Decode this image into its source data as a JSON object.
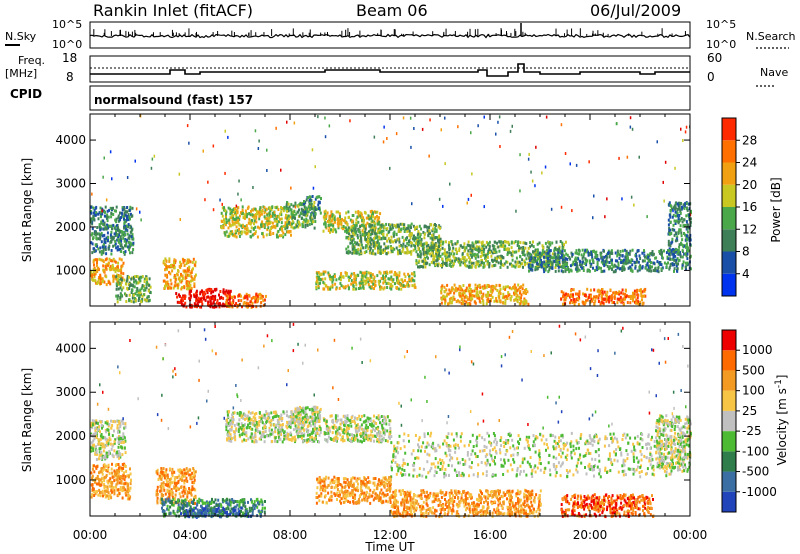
{
  "header": {
    "station": "Rankin Inlet (fitACF)",
    "beam": "Beam 06",
    "date": "06/Jul/2009"
  },
  "noise_panel": {
    "left_label": "N.Sky",
    "right_label": "N.Search",
    "left_ticks": [
      "10^5",
      "10^0"
    ],
    "right_ticks": [
      "10^5",
      "10^0"
    ]
  },
  "freq_panel": {
    "left_label_1": "Freq.",
    "left_label_2": "[MHz]",
    "right_label": "Nave",
    "left_ticks": [
      "18",
      "8"
    ],
    "right_ticks": [
      "60",
      "0"
    ]
  },
  "cpid_panel": {
    "label": "CPID",
    "text": "normalsound (fast) 157"
  },
  "colors": {
    "power_scale": [
      "#0033ee",
      "#1a4fa8",
      "#3f7f58",
      "#4aa84a",
      "#c9c822",
      "#f0a010",
      "#ff7000",
      "#ff2a00",
      "#e00000"
    ],
    "velocity_scale": [
      "#2244bb",
      "#3b6fa3",
      "#2f7d4a",
      "#4cbb33",
      "#c0c0c0",
      "#f7c545",
      "#f29a22",
      "#ff6a00",
      "#ee0000"
    ]
  },
  "chart_data": [
    {
      "type": "heatmap",
      "title": "",
      "xlabel": "Time UT",
      "ylabel": "Slant Range [km]",
      "x_ticks": [
        "00:00",
        "04:00",
        "08:00",
        "12:00",
        "16:00",
        "20:00",
        "00:00"
      ],
      "y_ticks": [
        "1000",
        "2000",
        "3000",
        "4000"
      ],
      "xlim": [
        0,
        24
      ],
      "ylim": [
        180,
        4600
      ],
      "colorbar": {
        "label": "Power [dB]",
        "ticks": [
          "4",
          "8",
          "12",
          "16",
          "20",
          "24",
          "28"
        ],
        "range": [
          0,
          30
        ]
      },
      "regions": [
        {
          "x": [
            0.0,
            1.7
          ],
          "y": [
            1400,
            2500
          ],
          "level": 2
        },
        {
          "x": [
            0.0,
            1.3
          ],
          "y": [
            700,
            1300
          ],
          "level": 5
        },
        {
          "x": [
            1.0,
            2.4
          ],
          "y": [
            300,
            900
          ],
          "level": 3
        },
        {
          "x": [
            2.9,
            4.2
          ],
          "y": [
            600,
            1300
          ],
          "level": 5
        },
        {
          "x": [
            3.4,
            5.6
          ],
          "y": [
            180,
            600
          ],
          "level": 8
        },
        {
          "x": [
            5.4,
            7.0
          ],
          "y": [
            180,
            500
          ],
          "level": 6
        },
        {
          "x": [
            5.2,
            8.0
          ],
          "y": [
            1800,
            2500
          ],
          "level": 4
        },
        {
          "x": [
            7.8,
            9.0
          ],
          "y": [
            2000,
            2600
          ],
          "level": 3
        },
        {
          "x": [
            8.5,
            9.2
          ],
          "y": [
            2300,
            2750
          ],
          "level": 2
        },
        {
          "x": [
            9.3,
            11.6
          ],
          "y": [
            1900,
            2400
          ],
          "level": 4
        },
        {
          "x": [
            10.2,
            14.0
          ],
          "y": [
            1400,
            2100
          ],
          "level": 3
        },
        {
          "x": [
            13.0,
            19.0
          ],
          "y": [
            1100,
            1700
          ],
          "level": 3
        },
        {
          "x": [
            17.5,
            24.0
          ],
          "y": [
            1000,
            1500
          ],
          "level": 2
        },
        {
          "x": [
            14.0,
            17.5
          ],
          "y": [
            250,
            700
          ],
          "level": 5
        },
        {
          "x": [
            18.8,
            22.2
          ],
          "y": [
            250,
            600
          ],
          "level": 6
        },
        {
          "x": [
            9.0,
            13.0
          ],
          "y": [
            600,
            1000
          ],
          "level": 4
        },
        {
          "x": [
            23.1,
            24.0
          ],
          "y": [
            1400,
            2600
          ],
          "level": 2
        }
      ]
    },
    {
      "type": "heatmap",
      "title": "",
      "xlabel": "Time UT",
      "ylabel": "Slant Range [km]",
      "x_ticks": [
        "00:00",
        "04:00",
        "08:00",
        "12:00",
        "16:00",
        "20:00",
        "00:00"
      ],
      "y_ticks": [
        "1000",
        "2000",
        "3000",
        "4000"
      ],
      "xlim": [
        0,
        24
      ],
      "ylim": [
        180,
        4600
      ],
      "colorbar": {
        "label": "Velocity [m s^-1]",
        "ticks": [
          "1000",
          "500",
          "100",
          "25",
          "-25",
          "-100",
          "-500",
          "-1000"
        ],
        "range": [
          -1000,
          1000
        ]
      },
      "regions": [
        {
          "x": [
            0.0,
            1.4
          ],
          "y": [
            1500,
            2400
          ],
          "level": 4
        },
        {
          "x": [
            0.0,
            1.6
          ],
          "y": [
            600,
            1400
          ],
          "level": 6
        },
        {
          "x": [
            2.6,
            4.2
          ],
          "y": [
            500,
            1300
          ],
          "level": 6
        },
        {
          "x": [
            2.8,
            7.0
          ],
          "y": [
            200,
            600
          ],
          "level": 2
        },
        {
          "x": [
            3.6,
            6.5
          ],
          "y": [
            180,
            400
          ],
          "level": 1
        },
        {
          "x": [
            5.4,
            9.2
          ],
          "y": [
            1900,
            2600
          ],
          "level": 4
        },
        {
          "x": [
            8.0,
            9.2
          ],
          "y": [
            2300,
            2700
          ],
          "level": 4
        },
        {
          "x": [
            9.3,
            12.0
          ],
          "y": [
            1900,
            2500
          ],
          "level": 4
        },
        {
          "x": [
            12.0,
            24.0
          ],
          "y": [
            1100,
            2100
          ],
          "level": 4
        },
        {
          "x": [
            9.0,
            12.0
          ],
          "y": [
            500,
            1100
          ],
          "level": 6
        },
        {
          "x": [
            12.0,
            18.0
          ],
          "y": [
            200,
            800
          ],
          "level": 6
        },
        {
          "x": [
            18.8,
            22.5
          ],
          "y": [
            200,
            700
          ],
          "level": 7
        },
        {
          "x": [
            22.6,
            24.0
          ],
          "y": [
            1300,
            2500
          ],
          "level": 4
        }
      ]
    }
  ]
}
